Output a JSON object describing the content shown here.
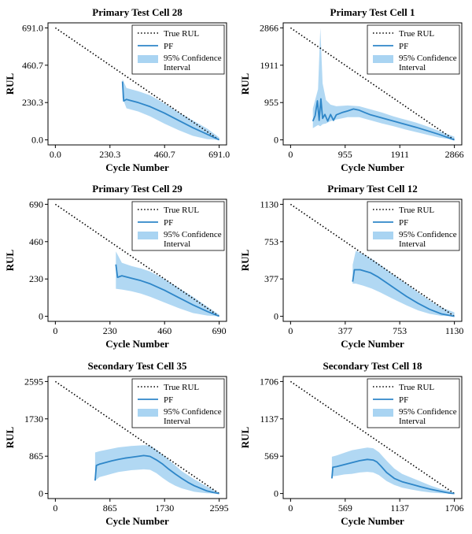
{
  "legend": {
    "true_rul": "True RUL",
    "pf": "PF",
    "ci_line1": "95% Confidence",
    "ci_line2": "Interval"
  },
  "colors": {
    "pf": "#2e86c8",
    "ci": "#a9d4f2",
    "true_rul": "#000000",
    "axis": "#000000"
  },
  "chart_data": [
    {
      "type": "line",
      "title": "Primary Test Cell 28",
      "xlabel": "Cycle Number",
      "ylabel": "RUL",
      "xlim": [
        0,
        691
      ],
      "ylim": [
        0,
        691
      ],
      "xticks": [
        0,
        230.3,
        460.7,
        691.0
      ],
      "xtick_labels": [
        "0.0",
        "230.3",
        "460.7",
        "691.0"
      ],
      "yticks": [
        0,
        230.3,
        460.7,
        691.0
      ],
      "ytick_labels": [
        "0.0",
        "230.3",
        "460.7",
        "691.0"
      ],
      "series": [
        {
          "name": "True RUL",
          "x": [
            0,
            691
          ],
          "y": [
            691,
            0
          ]
        },
        {
          "name": "PF",
          "x": [
            283,
            288,
            300,
            350,
            400,
            460,
            520,
            580,
            640,
            691
          ],
          "y": [
            360,
            240,
            250,
            230,
            205,
            165,
            120,
            75,
            35,
            0
          ]
        },
        {
          "name": "95% Confidence Interval",
          "x": [
            283,
            300,
            350,
            400,
            460,
            520,
            580,
            640,
            691
          ],
          "y_upper": [
            375,
            320,
            300,
            275,
            225,
            170,
            120,
            70,
            15
          ],
          "y_lower": [
            260,
            195,
            175,
            145,
            100,
            60,
            25,
            5,
            0
          ]
        }
      ]
    },
    {
      "type": "line",
      "title": "Primary Test Cell 1",
      "xlabel": "Cycle Number",
      "ylabel": "RUL",
      "xlim": [
        0,
        2866
      ],
      "ylim": [
        0,
        2866
      ],
      "xticks": [
        0,
        955,
        1911,
        2866
      ],
      "xtick_labels": [
        "0",
        "955",
        "1911",
        "2866"
      ],
      "yticks": [
        0,
        955,
        1911,
        2866
      ],
      "ytick_labels": [
        "0",
        "955",
        "1911",
        "2866"
      ],
      "series": [
        {
          "name": "True RUL",
          "x": [
            0,
            2866
          ],
          "y": [
            2866,
            0
          ]
        },
        {
          "name": "PF",
          "x": [
            390,
            430,
            470,
            500,
            530,
            560,
            600,
            650,
            700,
            750,
            800,
            900,
            1000,
            1100,
            1200,
            1300,
            1400,
            1600,
            1800,
            2000,
            2200,
            2400,
            2600,
            2866
          ],
          "y": [
            480,
            620,
            1000,
            500,
            1050,
            550,
            650,
            480,
            650,
            500,
            640,
            700,
            740,
            790,
            760,
            700,
            640,
            560,
            480,
            400,
            320,
            230,
            140,
            0
          ]
        },
        {
          "name": "95% Confidence Interval",
          "x": [
            390,
            480,
            520,
            560,
            620,
            700,
            800,
            1000,
            1200,
            1400,
            1600,
            1800,
            2000,
            2200,
            2400,
            2600,
            2866
          ],
          "y_upper": [
            800,
            1300,
            2866,
            1450,
            1020,
            900,
            860,
            880,
            860,
            780,
            700,
            600,
            520,
            440,
            340,
            230,
            80
          ],
          "y_lower": [
            300,
            380,
            350,
            400,
            420,
            480,
            520,
            580,
            580,
            500,
            420,
            350,
            270,
            200,
            130,
            60,
            0
          ]
        }
      ]
    },
    {
      "type": "line",
      "title": "Primary Test Cell 29",
      "xlabel": "Cycle Number",
      "ylabel": "RUL",
      "xlim": [
        0,
        690
      ],
      "ylim": [
        0,
        690
      ],
      "xticks": [
        0,
        230,
        460,
        690
      ],
      "xtick_labels": [
        "0",
        "230",
        "460",
        "690"
      ],
      "yticks": [
        0,
        230,
        460,
        690
      ],
      "ytick_labels": [
        "0",
        "230",
        "460",
        "690"
      ],
      "series": [
        {
          "name": "True RUL",
          "x": [
            0,
            690
          ],
          "y": [
            690,
            0
          ]
        },
        {
          "name": "PF",
          "x": [
            255,
            262,
            280,
            320,
            360,
            400,
            460,
            520,
            580,
            640,
            690
          ],
          "y": [
            320,
            240,
            250,
            235,
            220,
            200,
            160,
            115,
            70,
            30,
            0
          ]
        },
        {
          "name": "95% Confidence Interval",
          "x": [
            255,
            280,
            320,
            360,
            400,
            460,
            520,
            580,
            640,
            690
          ],
          "y_upper": [
            400,
            330,
            310,
            295,
            275,
            230,
            175,
            120,
            60,
            10
          ],
          "y_lower": [
            170,
            165,
            155,
            140,
            120,
            85,
            50,
            20,
            5,
            0
          ]
        }
      ]
    },
    {
      "type": "line",
      "title": "Primary Test Cell 12",
      "xlabel": "Cycle Number",
      "ylabel": "RUL",
      "xlim": [
        0,
        1130
      ],
      "ylim": [
        0,
        1130
      ],
      "xticks": [
        0,
        377,
        753,
        1130
      ],
      "xtick_labels": [
        "0",
        "377",
        "753",
        "1130"
      ],
      "yticks": [
        0,
        377,
        753,
        1130
      ],
      "ytick_labels": [
        "0",
        "377",
        "753",
        "1130"
      ],
      "series": [
        {
          "name": "True RUL",
          "x": [
            0,
            1130
          ],
          "y": [
            1130,
            0
          ]
        },
        {
          "name": "PF",
          "x": [
            428,
            440,
            480,
            550,
            600,
            660,
            720,
            800,
            880,
            960,
            1040,
            1130
          ],
          "y": [
            350,
            470,
            470,
            440,
            400,
            340,
            280,
            200,
            130,
            70,
            25,
            0
          ]
        },
        {
          "name": "95% Confidence Interval",
          "x": [
            428,
            450,
            500,
            560,
            620,
            700,
            800,
            880,
            960,
            1040,
            1130
          ],
          "y_upper": [
            520,
            660,
            630,
            580,
            520,
            430,
            330,
            240,
            160,
            90,
            40
          ],
          "y_lower": [
            330,
            330,
            310,
            280,
            240,
            180,
            110,
            60,
            25,
            5,
            0
          ]
        }
      ]
    },
    {
      "type": "line",
      "title": "Secondary Test Cell 35",
      "xlabel": "Cycle Number",
      "ylabel": "RUL",
      "xlim": [
        0,
        2595
      ],
      "ylim": [
        0,
        2595
      ],
      "xticks": [
        0,
        865,
        1730,
        2595
      ],
      "xtick_labels": [
        "0",
        "865",
        "1730",
        "2595"
      ],
      "yticks": [
        0,
        865,
        1730,
        2595
      ],
      "ytick_labels": [
        "0",
        "865",
        "1730",
        "2595"
      ],
      "series": [
        {
          "name": "True RUL",
          "x": [
            0,
            2595
          ],
          "y": [
            2595,
            0
          ]
        },
        {
          "name": "PF",
          "x": [
            630,
            650,
            700,
            800,
            900,
            1000,
            1100,
            1200,
            1300,
            1400,
            1450,
            1500,
            1600,
            1700,
            1800,
            1900,
            2000,
            2100,
            2200,
            2300,
            2400,
            2500,
            2595
          ],
          "y": [
            300,
            650,
            680,
            720,
            760,
            790,
            820,
            840,
            860,
            880,
            870,
            860,
            780,
            680,
            560,
            450,
            350,
            260,
            180,
            120,
            60,
            25,
            0
          ]
        },
        {
          "name": "95% Confidence Interval",
          "x": [
            630,
            700,
            800,
            900,
            1000,
            1200,
            1400,
            1500,
            1600,
            1700,
            1800,
            1900,
            2000,
            2200,
            2400,
            2595
          ],
          "y_upper": [
            950,
            980,
            1010,
            1040,
            1070,
            1100,
            1120,
            1110,
            1020,
            900,
            780,
            650,
            520,
            330,
            160,
            20
          ],
          "y_lower": [
            300,
            380,
            420,
            460,
            500,
            540,
            560,
            550,
            470,
            360,
            260,
            180,
            120,
            40,
            5,
            0
          ]
        }
      ]
    },
    {
      "type": "line",
      "title": "Secondary Test Cell 18",
      "xlabel": "Cycle Number",
      "ylabel": "RUL",
      "xlim": [
        0,
        1706
      ],
      "ylim": [
        0,
        1706
      ],
      "xticks": [
        0,
        569,
        1137,
        1706
      ],
      "xtick_labels": [
        "0",
        "569",
        "1137",
        "1706"
      ],
      "yticks": [
        0,
        569,
        1137,
        1706
      ],
      "ytick_labels": [
        "0",
        "569",
        "1137",
        "1706"
      ],
      "series": [
        {
          "name": "True RUL",
          "x": [
            0,
            1706
          ],
          "y": [
            1706,
            0
          ]
        },
        {
          "name": "PF",
          "x": [
            430,
            440,
            480,
            560,
            640,
            720,
            800,
            860,
            900,
            940,
            1000,
            1080,
            1160,
            1260,
            1360,
            1460,
            1560,
            1640,
            1706
          ],
          "y": [
            230,
            400,
            410,
            440,
            470,
            500,
            520,
            510,
            480,
            420,
            320,
            230,
            180,
            140,
            100,
            65,
            35,
            10,
            0
          ]
        },
        {
          "name": "95% Confidence Interval",
          "x": [
            430,
            480,
            560,
            640,
            720,
            800,
            860,
            920,
            1000,
            1080,
            1160,
            1260,
            1360,
            1460,
            1560,
            1660,
            1706
          ],
          "y_upper": [
            560,
            580,
            620,
            660,
            680,
            700,
            690,
            630,
            500,
            380,
            300,
            240,
            180,
            120,
            70,
            40,
            10
          ],
          "y_lower": [
            260,
            270,
            290,
            300,
            320,
            330,
            320,
            280,
            190,
            130,
            90,
            60,
            35,
            15,
            5,
            0,
            0
          ]
        }
      ]
    }
  ]
}
